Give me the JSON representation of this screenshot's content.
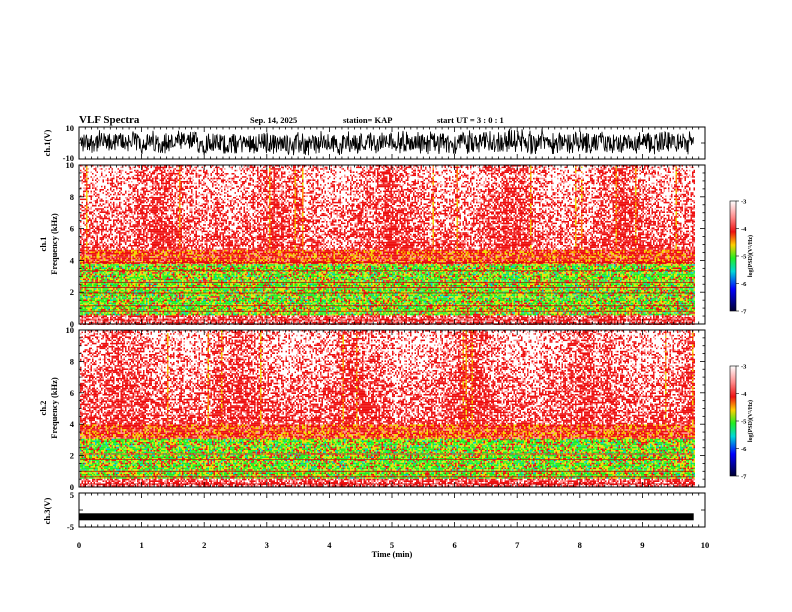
{
  "header": {
    "title": "VLF Spectra",
    "date": "Sep. 14, 2025",
    "station": "station= KAP",
    "start": "start  UT =  3 : 0  : 1"
  },
  "chart_data": [
    {
      "name": "ch1-waveform",
      "type": "line",
      "ylabel": "ch.1(V)",
      "ylim": [
        -10,
        10
      ],
      "yticks": [
        "10",
        "-10"
      ],
      "x_range_min": [
        0,
        9.82
      ],
      "description_level": "noisy waveform mostly between -6 and 6 V"
    },
    {
      "name": "ch1-spectrogram",
      "type": "heatmap",
      "ylabel": "ch.1\nFrequency (kHz)",
      "ylabel_top": "ch.1",
      "ylabel_bottom": "Frequency (kHz)",
      "ylim": [
        0,
        10
      ],
      "yticks": [
        "0",
        "2",
        "4",
        "6",
        "8",
        "10"
      ],
      "x_range_min": [
        0,
        9.82
      ],
      "colorbar": {
        "label": "log(PSD)(V²/Hz)",
        "range": [
          -7,
          -3
        ],
        "ticks": [
          "-3",
          "-4",
          "-5",
          "-6",
          "-7"
        ]
      }
    },
    {
      "name": "ch2-spectrogram",
      "type": "heatmap",
      "ylabel_top": "ch.2",
      "ylabel_bottom": "Frequency (kHz)",
      "ylim": [
        0,
        10
      ],
      "yticks": [
        "0",
        "2",
        "4",
        "6",
        "8",
        "10"
      ],
      "x_range_min": [
        0,
        9.82
      ],
      "colorbar": {
        "label": "log(PSD)(V²/Hz)",
        "range": [
          -7,
          -3
        ],
        "ticks": [
          "-3",
          "-4",
          "-5",
          "-6",
          "-7"
        ]
      }
    },
    {
      "name": "ch3-waveform",
      "type": "line",
      "ylabel": "ch.3(V)",
      "ylim": [
        -5,
        5
      ],
      "yticks": [
        "5",
        "-5"
      ],
      "x_range_min": [
        0,
        9.82
      ],
      "level": -2
    }
  ],
  "xaxis": {
    "label": "Time (min)",
    "lim": [
      0,
      10
    ],
    "ticks": [
      "0",
      "1",
      "2",
      "3",
      "4",
      "5",
      "6",
      "7",
      "8",
      "9",
      "10"
    ]
  },
  "colors": {
    "high": "#ffffff",
    "red": "#ee1111",
    "yellow": "#f0e000",
    "green": "#22ee22",
    "blue": "#0000ff",
    "low": "#000044"
  }
}
